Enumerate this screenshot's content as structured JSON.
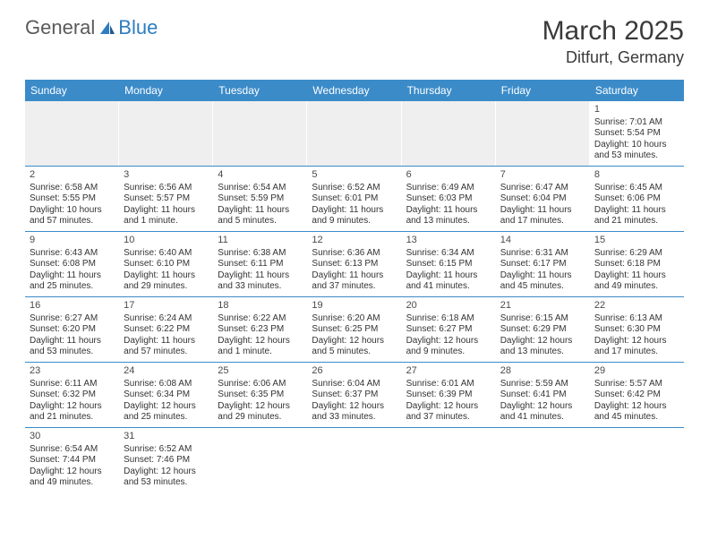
{
  "logo": {
    "text_general": "General",
    "text_blue": "Blue",
    "triangle_color": "#2d7dc0"
  },
  "title": "March 2025",
  "location": "Ditfurt, Germany",
  "colors": {
    "header_bg": "#3b8bc9",
    "header_text": "#ffffff",
    "border": "#3b8bc9",
    "empty_bg": "#efefef",
    "text": "#333333",
    "day_num": "#4a4a4a"
  },
  "typography": {
    "title_fontsize": 30,
    "location_fontsize": 18,
    "weekday_fontsize": 12,
    "daynum_fontsize": 11,
    "body_fontsize": 10
  },
  "weekdays": [
    "Sunday",
    "Monday",
    "Tuesday",
    "Wednesday",
    "Thursday",
    "Friday",
    "Saturday"
  ],
  "weeks": [
    [
      {
        "empty": true
      },
      {
        "empty": true
      },
      {
        "empty": true
      },
      {
        "empty": true
      },
      {
        "empty": true
      },
      {
        "empty": true
      },
      {
        "num": "1",
        "sunrise": "Sunrise: 7:01 AM",
        "sunset": "Sunset: 5:54 PM",
        "daylight1": "Daylight: 10 hours",
        "daylight2": "and 53 minutes."
      }
    ],
    [
      {
        "num": "2",
        "sunrise": "Sunrise: 6:58 AM",
        "sunset": "Sunset: 5:55 PM",
        "daylight1": "Daylight: 10 hours",
        "daylight2": "and 57 minutes."
      },
      {
        "num": "3",
        "sunrise": "Sunrise: 6:56 AM",
        "sunset": "Sunset: 5:57 PM",
        "daylight1": "Daylight: 11 hours",
        "daylight2": "and 1 minute."
      },
      {
        "num": "4",
        "sunrise": "Sunrise: 6:54 AM",
        "sunset": "Sunset: 5:59 PM",
        "daylight1": "Daylight: 11 hours",
        "daylight2": "and 5 minutes."
      },
      {
        "num": "5",
        "sunrise": "Sunrise: 6:52 AM",
        "sunset": "Sunset: 6:01 PM",
        "daylight1": "Daylight: 11 hours",
        "daylight2": "and 9 minutes."
      },
      {
        "num": "6",
        "sunrise": "Sunrise: 6:49 AM",
        "sunset": "Sunset: 6:03 PM",
        "daylight1": "Daylight: 11 hours",
        "daylight2": "and 13 minutes."
      },
      {
        "num": "7",
        "sunrise": "Sunrise: 6:47 AM",
        "sunset": "Sunset: 6:04 PM",
        "daylight1": "Daylight: 11 hours",
        "daylight2": "and 17 minutes."
      },
      {
        "num": "8",
        "sunrise": "Sunrise: 6:45 AM",
        "sunset": "Sunset: 6:06 PM",
        "daylight1": "Daylight: 11 hours",
        "daylight2": "and 21 minutes."
      }
    ],
    [
      {
        "num": "9",
        "sunrise": "Sunrise: 6:43 AM",
        "sunset": "Sunset: 6:08 PM",
        "daylight1": "Daylight: 11 hours",
        "daylight2": "and 25 minutes."
      },
      {
        "num": "10",
        "sunrise": "Sunrise: 6:40 AM",
        "sunset": "Sunset: 6:10 PM",
        "daylight1": "Daylight: 11 hours",
        "daylight2": "and 29 minutes."
      },
      {
        "num": "11",
        "sunrise": "Sunrise: 6:38 AM",
        "sunset": "Sunset: 6:11 PM",
        "daylight1": "Daylight: 11 hours",
        "daylight2": "and 33 minutes."
      },
      {
        "num": "12",
        "sunrise": "Sunrise: 6:36 AM",
        "sunset": "Sunset: 6:13 PM",
        "daylight1": "Daylight: 11 hours",
        "daylight2": "and 37 minutes."
      },
      {
        "num": "13",
        "sunrise": "Sunrise: 6:34 AM",
        "sunset": "Sunset: 6:15 PM",
        "daylight1": "Daylight: 11 hours",
        "daylight2": "and 41 minutes."
      },
      {
        "num": "14",
        "sunrise": "Sunrise: 6:31 AM",
        "sunset": "Sunset: 6:17 PM",
        "daylight1": "Daylight: 11 hours",
        "daylight2": "and 45 minutes."
      },
      {
        "num": "15",
        "sunrise": "Sunrise: 6:29 AM",
        "sunset": "Sunset: 6:18 PM",
        "daylight1": "Daylight: 11 hours",
        "daylight2": "and 49 minutes."
      }
    ],
    [
      {
        "num": "16",
        "sunrise": "Sunrise: 6:27 AM",
        "sunset": "Sunset: 6:20 PM",
        "daylight1": "Daylight: 11 hours",
        "daylight2": "and 53 minutes."
      },
      {
        "num": "17",
        "sunrise": "Sunrise: 6:24 AM",
        "sunset": "Sunset: 6:22 PM",
        "daylight1": "Daylight: 11 hours",
        "daylight2": "and 57 minutes."
      },
      {
        "num": "18",
        "sunrise": "Sunrise: 6:22 AM",
        "sunset": "Sunset: 6:23 PM",
        "daylight1": "Daylight: 12 hours",
        "daylight2": "and 1 minute."
      },
      {
        "num": "19",
        "sunrise": "Sunrise: 6:20 AM",
        "sunset": "Sunset: 6:25 PM",
        "daylight1": "Daylight: 12 hours",
        "daylight2": "and 5 minutes."
      },
      {
        "num": "20",
        "sunrise": "Sunrise: 6:18 AM",
        "sunset": "Sunset: 6:27 PM",
        "daylight1": "Daylight: 12 hours",
        "daylight2": "and 9 minutes."
      },
      {
        "num": "21",
        "sunrise": "Sunrise: 6:15 AM",
        "sunset": "Sunset: 6:29 PM",
        "daylight1": "Daylight: 12 hours",
        "daylight2": "and 13 minutes."
      },
      {
        "num": "22",
        "sunrise": "Sunrise: 6:13 AM",
        "sunset": "Sunset: 6:30 PM",
        "daylight1": "Daylight: 12 hours",
        "daylight2": "and 17 minutes."
      }
    ],
    [
      {
        "num": "23",
        "sunrise": "Sunrise: 6:11 AM",
        "sunset": "Sunset: 6:32 PM",
        "daylight1": "Daylight: 12 hours",
        "daylight2": "and 21 minutes."
      },
      {
        "num": "24",
        "sunrise": "Sunrise: 6:08 AM",
        "sunset": "Sunset: 6:34 PM",
        "daylight1": "Daylight: 12 hours",
        "daylight2": "and 25 minutes."
      },
      {
        "num": "25",
        "sunrise": "Sunrise: 6:06 AM",
        "sunset": "Sunset: 6:35 PM",
        "daylight1": "Daylight: 12 hours",
        "daylight2": "and 29 minutes."
      },
      {
        "num": "26",
        "sunrise": "Sunrise: 6:04 AM",
        "sunset": "Sunset: 6:37 PM",
        "daylight1": "Daylight: 12 hours",
        "daylight2": "and 33 minutes."
      },
      {
        "num": "27",
        "sunrise": "Sunrise: 6:01 AM",
        "sunset": "Sunset: 6:39 PM",
        "daylight1": "Daylight: 12 hours",
        "daylight2": "and 37 minutes."
      },
      {
        "num": "28",
        "sunrise": "Sunrise: 5:59 AM",
        "sunset": "Sunset: 6:41 PM",
        "daylight1": "Daylight: 12 hours",
        "daylight2": "and 41 minutes."
      },
      {
        "num": "29",
        "sunrise": "Sunrise: 5:57 AM",
        "sunset": "Sunset: 6:42 PM",
        "daylight1": "Daylight: 12 hours",
        "daylight2": "and 45 minutes."
      }
    ],
    [
      {
        "num": "30",
        "sunrise": "Sunrise: 6:54 AM",
        "sunset": "Sunset: 7:44 PM",
        "daylight1": "Daylight: 12 hours",
        "daylight2": "and 49 minutes."
      },
      {
        "num": "31",
        "sunrise": "Sunrise: 6:52 AM",
        "sunset": "Sunset: 7:46 PM",
        "daylight1": "Daylight: 12 hours",
        "daylight2": "and 53 minutes."
      },
      {
        "empty": true,
        "blank": true
      },
      {
        "empty": true,
        "blank": true
      },
      {
        "empty": true,
        "blank": true
      },
      {
        "empty": true,
        "blank": true
      },
      {
        "empty": true,
        "blank": true
      }
    ]
  ]
}
